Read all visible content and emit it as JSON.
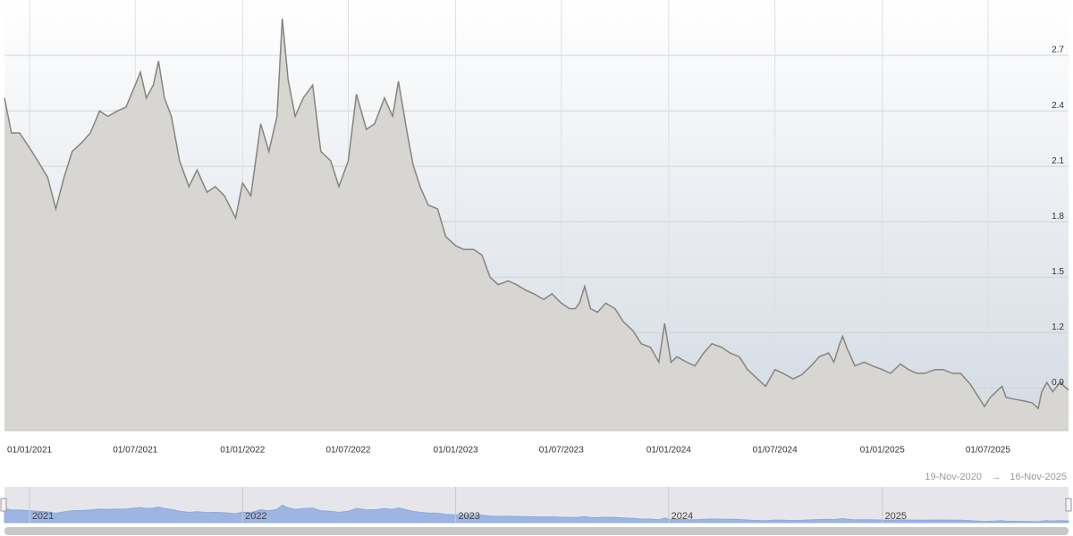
{
  "chart_data": {
    "type": "area",
    "color": "#86857d",
    "fill_color": "#d8d6d2",
    "nav_color": "#9db5e3",
    "grid": true,
    "x": [
      "19/11/2020",
      "01/12/2020",
      "15/12/2020",
      "01/01/2021",
      "15/01/2021",
      "01/02/2021",
      "15/02/2021",
      "01/03/2021",
      "15/03/2021",
      "01/04/2021",
      "15/04/2021",
      "01/05/2021",
      "15/05/2021",
      "01/06/2021",
      "15/06/2021",
      "01/07/2021",
      "10/07/2021",
      "20/07/2021",
      "01/08/2021",
      "10/08/2021",
      "20/08/2021",
      "01/09/2021",
      "15/09/2021",
      "01/10/2021",
      "15/10/2021",
      "01/11/2021",
      "15/11/2021",
      "01/12/2021",
      "20/12/2021",
      "01/01/2022",
      "15/01/2022",
      "01/02/2022",
      "15/02/2022",
      "01/03/2022",
      "10/03/2022",
      "20/03/2022",
      "01/04/2022",
      "15/04/2022",
      "01/05/2022",
      "15/05/2022",
      "01/06/2022",
      "15/06/2022",
      "01/07/2022",
      "15/07/2022",
      "01/08/2022",
      "15/08/2022",
      "01/09/2022",
      "15/09/2022",
      "25/09/2022",
      "10/10/2022",
      "20/10/2022",
      "01/11/2022",
      "15/11/2022",
      "01/12/2022",
      "15/12/2022",
      "01/01/2023",
      "15/01/2023",
      "01/02/2023",
      "15/02/2023",
      "01/03/2023",
      "15/03/2023",
      "01/04/2023",
      "15/04/2023",
      "01/05/2023",
      "15/05/2023",
      "01/06/2023",
      "15/06/2023",
      "01/07/2023",
      "15/07/2023",
      "25/07/2023",
      "01/08/2023",
      "10/08/2023",
      "20/08/2023",
      "01/09/2023",
      "15/09/2023",
      "01/10/2023",
      "15/10/2023",
      "01/11/2023",
      "15/11/2023",
      "01/12/2023",
      "15/12/2023",
      "25/12/2023",
      "05/01/2024",
      "15/01/2024",
      "01/02/2024",
      "15/02/2024",
      "01/03/2024",
      "15/03/2024",
      "01/04/2024",
      "15/04/2024",
      "01/05/2024",
      "15/05/2024",
      "01/06/2024",
      "15/06/2024",
      "01/07/2024",
      "15/07/2024",
      "01/08/2024",
      "15/08/2024",
      "01/09/2024",
      "15/09/2024",
      "01/10/2024",
      "10/10/2024",
      "20/10/2024",
      "25/10/2024",
      "01/11/2024",
      "15/11/2024",
      "01/12/2024",
      "15/12/2024",
      "01/01/2025",
      "15/01/2025",
      "01/02/2025",
      "15/02/2025",
      "01/03/2025",
      "15/03/2025",
      "01/04/2025",
      "15/04/2025",
      "01/05/2025",
      "15/05/2025",
      "01/06/2025",
      "15/06/2025",
      "25/06/2025",
      "05/07/2025",
      "15/07/2025",
      "25/07/2025",
      "01/08/2025",
      "15/08/2025",
      "01/09/2025",
      "15/09/2025",
      "25/09/2025",
      "01/10/2025",
      "10/10/2025",
      "20/10/2025",
      "01/11/2025",
      "16/11/2025"
    ],
    "values": [
      2.47,
      2.28,
      2.28,
      2.2,
      2.13,
      2.04,
      1.87,
      2.04,
      2.18,
      2.23,
      2.28,
      2.4,
      2.37,
      2.4,
      2.42,
      2.54,
      2.61,
      2.47,
      2.54,
      2.67,
      2.47,
      2.37,
      2.13,
      1.99,
      2.08,
      1.96,
      1.99,
      1.94,
      1.82,
      2.01,
      1.94,
      2.33,
      2.18,
      2.37,
      2.9,
      2.57,
      2.37,
      2.47,
      2.54,
      2.18,
      2.13,
      1.99,
      2.13,
      2.49,
      2.3,
      2.33,
      2.47,
      2.37,
      2.56,
      2.28,
      2.11,
      1.99,
      1.89,
      1.87,
      1.72,
      1.67,
      1.65,
      1.65,
      1.62,
      1.5,
      1.46,
      1.48,
      1.46,
      1.43,
      1.41,
      1.38,
      1.41,
      1.36,
      1.33,
      1.33,
      1.36,
      1.45,
      1.33,
      1.31,
      1.36,
      1.33,
      1.26,
      1.21,
      1.14,
      1.12,
      1.04,
      1.25,
      1.04,
      1.07,
      1.04,
      1.02,
      1.09,
      1.14,
      1.12,
      1.09,
      1.07,
      1.0,
      0.95,
      0.91,
      1.0,
      0.98,
      0.95,
      0.97,
      1.02,
      1.07,
      1.09,
      1.04,
      1.14,
      1.18,
      1.12,
      1.02,
      1.04,
      1.02,
      1.0,
      0.98,
      1.03,
      1.0,
      0.98,
      0.98,
      1.0,
      1.0,
      0.98,
      0.98,
      0.92,
      0.85,
      0.8,
      0.85,
      0.88,
      0.91,
      0.85,
      0.84,
      0.83,
      0.82,
      0.79,
      0.88,
      0.93,
      0.88,
      0.93,
      0.89
    ],
    "xlim": [
      "19-Nov-2020",
      "16-Nov-2025"
    ],
    "range_arrow": "→",
    "ylim": [
      0.67,
      3.0
    ],
    "yticks": [
      0.9,
      1.2,
      1.5,
      1.8,
      2.1,
      2.4,
      2.7
    ],
    "xticks": [
      "01/01/2021",
      "01/07/2021",
      "01/01/2022",
      "01/07/2022",
      "01/01/2023",
      "01/07/2023",
      "01/01/2024",
      "01/07/2024",
      "01/01/2025",
      "01/07/2025"
    ],
    "navigator_ticks": [
      {
        "value": "01/01/2021",
        "label": "2021"
      },
      {
        "value": "01/01/2022",
        "label": "2022"
      },
      {
        "value": "01/01/2023",
        "label": "2023"
      },
      {
        "value": "01/01/2024",
        "label": "2024"
      },
      {
        "value": "01/01/2025",
        "label": "2025"
      }
    ]
  }
}
